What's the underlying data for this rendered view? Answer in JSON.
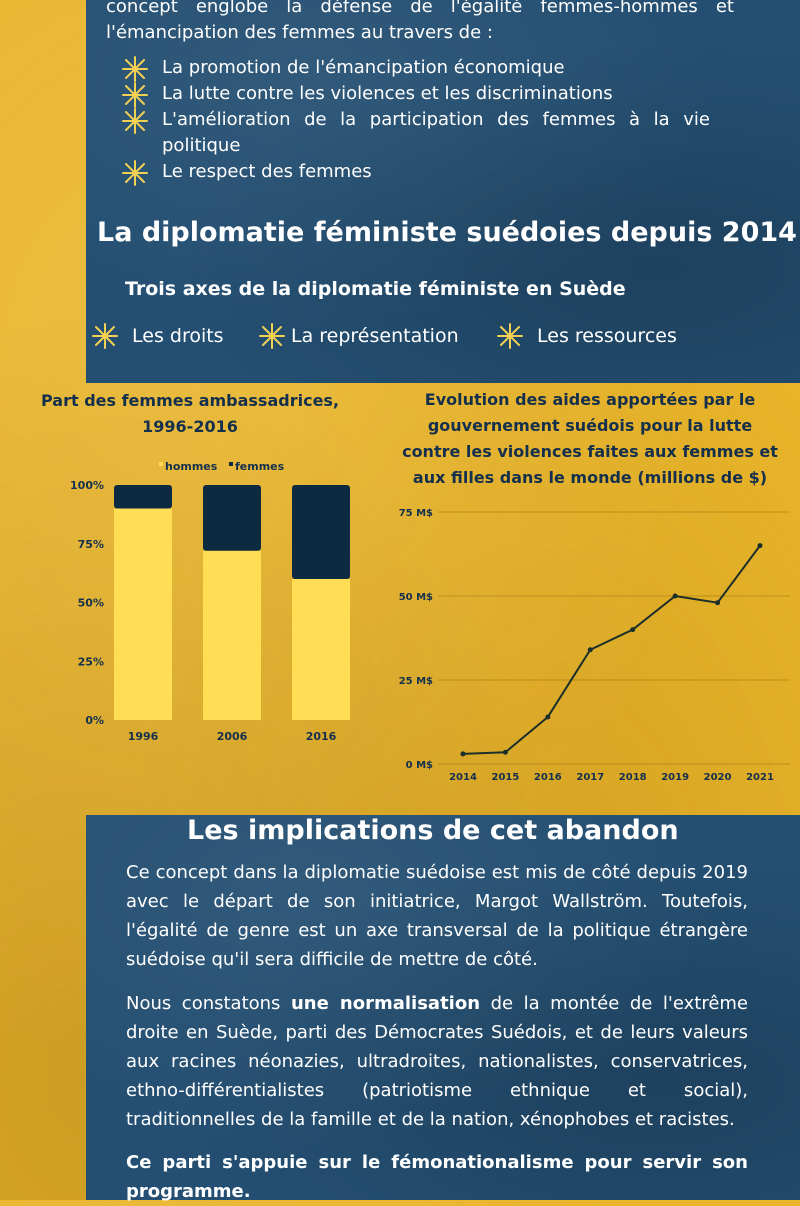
{
  "colors": {
    "background": "#e9b52a",
    "panel": "#244f72",
    "star": "#f3d152",
    "bar_men": "#ffdd55",
    "bar_women": "#0c2b40",
    "line": "#1b2f2a",
    "chart_text": "#14304d"
  },
  "intro": {
    "line1": "concept englobe la défense de l'égalité femmes-hommes et",
    "line2": "l'émancipation des femmes au travers de :"
  },
  "bullets": [
    "La promotion de l'émancipation économique",
    "La lutte contre les violences et les discriminations",
    "L'amélioration de la participation des femmes à la vie politique",
    "Le respect des femmes"
  ],
  "bullet_icon": "star-burst-icon",
  "section_2014": {
    "title": "La diplomatie féministe suédoies depuis 2014",
    "subtitle": "Trois axes de la diplomatie féministe en Suède",
    "axes": [
      "Les droits",
      "La représentation",
      "Les ressources"
    ]
  },
  "chart_data": [
    {
      "type": "bar",
      "stacked": true,
      "title": "Part des femmes ambassadrices, 1996-2016",
      "categories": [
        "1996",
        "2006",
        "2016"
      ],
      "series": [
        {
          "name": "hommes",
          "values": [
            90,
            72,
            60
          ],
          "color": "#ffdd55"
        },
        {
          "name": "femmes",
          "values": [
            10,
            28,
            40
          ],
          "color": "#0c2b40"
        }
      ],
      "yticks": [
        "0%",
        "25%",
        "50%",
        "75%",
        "100%"
      ],
      "ylim": [
        0,
        100
      ],
      "legend": "top"
    },
    {
      "type": "line",
      "title": "Evolution des aides apportées par le gouvernement suédois pour la lutte contre les violences faites aux femmes et aux filles dans le monde (millions de $)",
      "x": [
        "2014",
        "2015",
        "2016",
        "2017",
        "2018",
        "2019",
        "2020",
        "2021"
      ],
      "values": [
        3,
        3.5,
        14,
        34,
        40,
        50,
        48,
        65
      ],
      "yticks": [
        "0 M$",
        "25 M$",
        "50 M$",
        "75 M$"
      ],
      "ylim": [
        0,
        75
      ],
      "grid": true
    }
  ],
  "implications": {
    "title": "Les implications de cet abandon",
    "para1": "Ce concept dans la diplomatie suédoise est mis de côté depuis 2019 avec le départ de son initiatrice, Margot Wallström. Toutefois, l'égalité de genre est un axe transversal de la politique étrangère suédoise qu'il sera difficile de mettre de côté.",
    "para2_before": "Nous constatons ",
    "para2_bold": "une normalisation",
    "para2_after": " de la montée de l'extrême droite en Suède, parti des Démocrates Suédois, et de leurs valeurs aux racines néonazies, ultradroites, nationalistes, conservatrices, ethno-différentialistes (patriotisme ethnique et social), traditionnelles de la famille et de la nation, xénophobes et racistes.",
    "para3": "Ce parti s'appuie sur le fémonationalisme pour servir son programme."
  }
}
